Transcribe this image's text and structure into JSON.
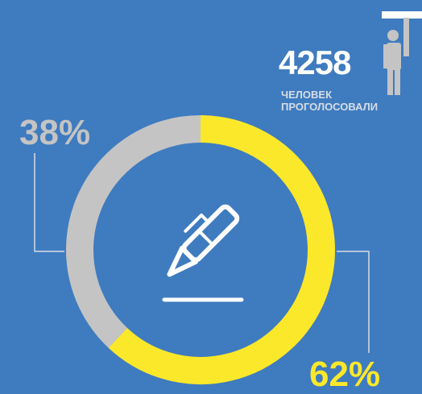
{
  "stats": {
    "count": "4258",
    "caption_line1": "ЧЕЛОВЕК",
    "caption_line2": "ПРОГОЛОСОВАЛИ"
  },
  "icons": {
    "center": "pen-writing-icon",
    "person": "person-raising-hand-icon"
  },
  "colors": {
    "background": "#3f7bbf",
    "yellow": "#fce82a",
    "grey": "#c4c4c4",
    "white": "#ffffff"
  },
  "chart_data": {
    "type": "pie",
    "donut": true,
    "slices": [
      {
        "value": 62,
        "label": "62%",
        "color": "#fce82a"
      },
      {
        "value": 38,
        "label": "38%",
        "color": "#c4c4c4"
      }
    ]
  }
}
